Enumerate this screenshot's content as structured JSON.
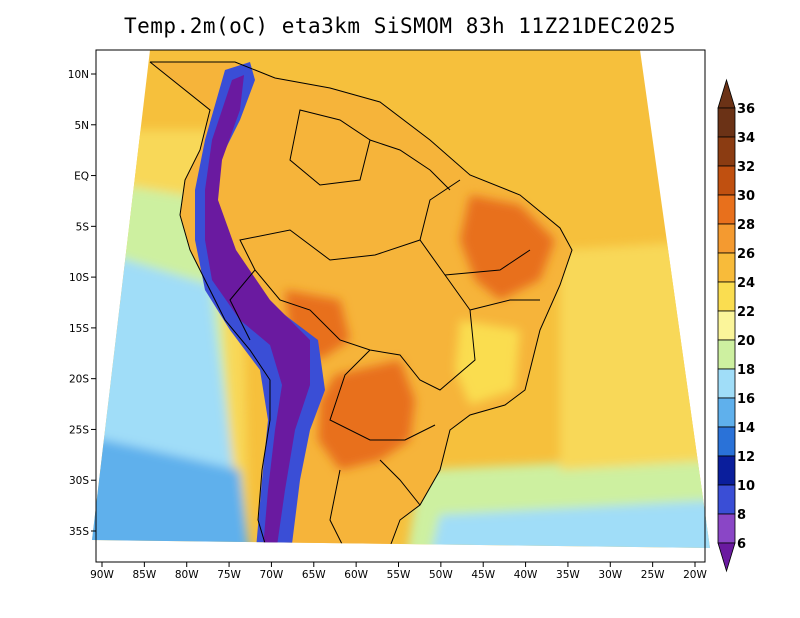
{
  "title": "Temp.2m(oC) eta3km SiSMOM 83h 11Z21DEC2025",
  "lon_axis": {
    "labels": [
      "90W",
      "85W",
      "80W",
      "75W",
      "70W",
      "65W",
      "60W",
      "55W",
      "50W",
      "45W",
      "40W",
      "35W",
      "30W",
      "25W",
      "20W"
    ],
    "values": [
      -90,
      -85,
      -80,
      -75,
      -70,
      -65,
      -60,
      -55,
      -50,
      -45,
      -40,
      -35,
      -30,
      -25,
      -20
    ]
  },
  "lat_axis": {
    "labels": [
      "10N",
      "5N",
      "EQ",
      "5S",
      "10S",
      "15S",
      "20S",
      "25S",
      "30S",
      "35S"
    ],
    "values": [
      10,
      5,
      0,
      -5,
      -10,
      -15,
      -20,
      -25,
      -30,
      -35
    ]
  },
  "colorbar": {
    "labels": [
      "36",
      "34",
      "32",
      "30",
      "28",
      "26",
      "24",
      "22",
      "20",
      "18",
      "16",
      "14",
      "12",
      "10",
      "8",
      "6"
    ],
    "colors": [
      "#6b3216",
      "#8b3c12",
      "#c05010",
      "#e8701c",
      "#f49a30",
      "#f8bb3a",
      "#fadd50",
      "#fbf59a",
      "#cdf0a0",
      "#a0ddf8",
      "#5fb0ec",
      "#2a72d8",
      "#0a1e9c",
      "#3a4ed6",
      "#8a46c6",
      "#6a1aa0"
    ],
    "top_color": "#6b3216",
    "bottom_color": "#6a1aa0"
  },
  "map_colors": {
    "ocean_warm": "#f6c03c",
    "ocean_mid": "#f8d858",
    "ocean_cool": "#cdf0a0",
    "ocean_cold": "#a0ddf8",
    "ocean_colder": "#5fb0ec",
    "land_base": "#f6b43a",
    "land_hot": "#e8701c",
    "andes_cold": "#6a1aa0",
    "andes_mid": "#3a4ed6",
    "highland": "#fadd50"
  }
}
